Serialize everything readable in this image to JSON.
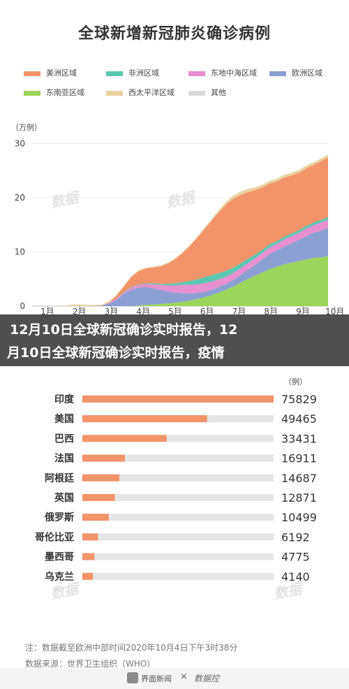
{
  "chart_data": [
    {
      "type": "area",
      "title": "全球新增新冠肺炎确诊病例",
      "unit_label": "（万例）",
      "ylim": [
        0,
        33
      ],
      "yticks": [
        0,
        10,
        20,
        30
      ],
      "xticks": [
        "1月",
        "2月",
        "3月",
        "4月",
        "5月",
        "6月",
        "7月",
        "8月",
        "9月",
        "10月"
      ],
      "legend_position": "top",
      "series": [
        {
          "name": "东南亚区域",
          "color": "#9ad65c",
          "values": [
            0,
            0,
            0,
            0,
            0,
            0,
            0,
            0,
            0,
            0,
            0,
            0,
            0,
            0,
            0.1,
            0.2,
            0.3,
            0.4,
            0.5,
            0.6,
            0.8,
            1.0,
            1.3,
            1.6,
            2.0,
            2.5,
            3.0,
            3.6,
            4.3,
            5.0,
            5.6,
            6.2,
            6.8,
            7.3,
            7.7,
            8.0,
            8.3,
            8.6,
            8.9,
            9.0,
            9.2
          ]
        },
        {
          "name": "欧洲区域",
          "color": "#8b9fd3",
          "values": [
            0,
            0,
            0,
            0,
            0,
            0,
            0,
            0,
            0,
            0.1,
            0.5,
            1.2,
            2.2,
            3.0,
            3.3,
            3.3,
            3.0,
            2.6,
            2.2,
            1.9,
            1.6,
            1.3,
            1.1,
            1.0,
            1.0,
            1.0,
            1.1,
            1.2,
            1.4,
            1.7,
            2.0,
            2.4,
            2.8,
            3.0,
            3.3,
            3.6,
            3.9,
            4.3,
            4.6,
            4.9,
            5.2
          ]
        },
        {
          "name": "东地中海区域",
          "color": "#e88fd0",
          "values": [
            0,
            0,
            0,
            0,
            0,
            0,
            0,
            0,
            0,
            0,
            0.1,
            0.2,
            0.3,
            0.4,
            0.5,
            0.6,
            0.7,
            0.9,
            1.1,
            1.3,
            1.5,
            1.6,
            1.6,
            1.6,
            1.5,
            1.4,
            1.3,
            1.3,
            1.3,
            1.2,
            1.2,
            1.2,
            1.2,
            1.2,
            1.3,
            1.3,
            1.3,
            1.4,
            1.4,
            1.5,
            1.5
          ]
        },
        {
          "name": "非洲区域",
          "color": "#5cc7b0",
          "values": [
            0,
            0,
            0,
            0,
            0,
            0,
            0,
            0,
            0,
            0,
            0,
            0,
            0.1,
            0.1,
            0.1,
            0.1,
            0.2,
            0.2,
            0.3,
            0.4,
            0.5,
            0.7,
            0.9,
            1.1,
            1.2,
            1.2,
            1.1,
            1.0,
            0.9,
            0.8,
            0.7,
            0.6,
            0.6,
            0.5,
            0.5,
            0.5,
            0.5,
            0.5,
            0.5,
            0.5,
            0.5
          ]
        },
        {
          "name": "美洲区域",
          "color": "#f2936a",
          "values": [
            0,
            0,
            0,
            0,
            0,
            0,
            0,
            0,
            0,
            0,
            0.1,
            0.5,
            1.0,
            1.8,
            2.4,
            2.7,
            2.9,
            3.2,
            3.7,
            4.4,
            5.3,
            6.4,
            7.6,
            8.8,
            10.0,
            11.2,
            12.2,
            12.7,
            12.6,
            12.3,
            11.9,
            11.5,
            11.2,
            11.0,
            10.9,
            10.7,
            10.6,
            10.6,
            10.6,
            10.8,
            11.0
          ]
        },
        {
          "name": "西太平洋区域",
          "color": "#ead2a0",
          "values": [
            0,
            0,
            0,
            0,
            0.1,
            0.3,
            0.3,
            0.2,
            0.2,
            0.2,
            0.2,
            0.2,
            0.2,
            0.2,
            0.2,
            0.2,
            0.2,
            0.2,
            0.2,
            0.2,
            0.2,
            0.2,
            0.2,
            0.3,
            0.3,
            0.4,
            0.5,
            0.6,
            0.6,
            0.6,
            0.5,
            0.5,
            0.5,
            0.5,
            0.5,
            0.5,
            0.5,
            0.5,
            0.5,
            0.5,
            0.5
          ]
        },
        {
          "name": "其他",
          "color": "#d9d9d9",
          "values": [
            0,
            0,
            0,
            0,
            0,
            0,
            0,
            0,
            0,
            0,
            0,
            0,
            0,
            0,
            0,
            0,
            0,
            0,
            0,
            0,
            0,
            0,
            0,
            0,
            0,
            0,
            0,
            0,
            0,
            0,
            0,
            0,
            0,
            0,
            0,
            0,
            0,
            0,
            0,
            0,
            0
          ]
        }
      ]
    },
    {
      "type": "bar",
      "orientation": "horizontal",
      "unit_label": "（例）",
      "categories": [
        "印度",
        "美国",
        "巴西",
        "法国",
        "阿根廷",
        "英国",
        "俄罗斯",
        "哥伦比亚",
        "墨西哥",
        "乌克兰"
      ],
      "values": [
        75829,
        49465,
        33431,
        16911,
        14687,
        12871,
        10499,
        6192,
        4775,
        4140
      ],
      "value_labels": [
        "75829",
        "49465",
        "33431",
        "16911",
        "14687",
        "12871",
        "10499",
        "6192",
        "4775",
        "4140"
      ],
      "bar_color": "#f2936a",
      "track_color": "#e6e6e6"
    }
  ],
  "banner": {
    "line1": "12月10日全球新冠确诊实时报告，12",
    "line2": "月10日全球新冠确诊实时报告，疫情"
  },
  "notes": {
    "note": "注：数据截至欧洲中部时间2020年10月4日下午3时38分",
    "source": "数据来源：世界卫生组织（WHO）"
  },
  "footer": {
    "brand": "界面新闻",
    "times": "×",
    "partner": "数据控"
  }
}
